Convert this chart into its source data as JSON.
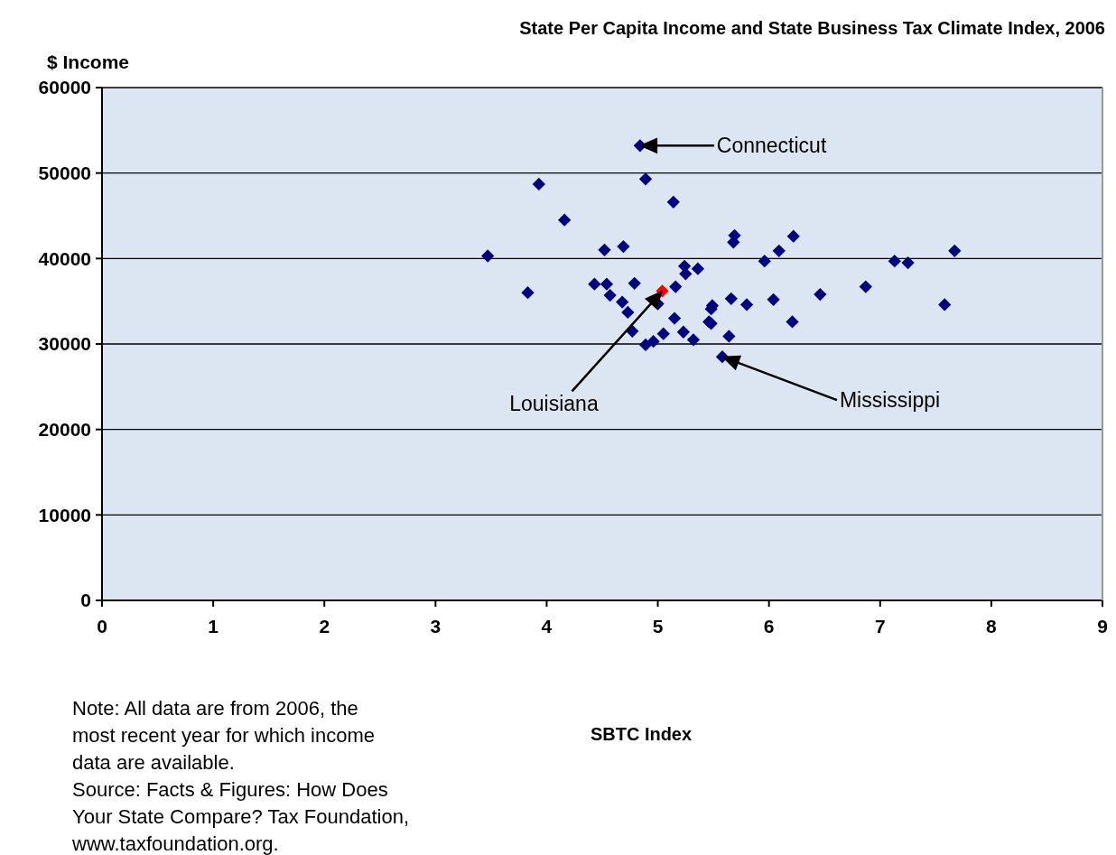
{
  "chart_data": {
    "type": "scatter",
    "title": "State Per Capita Income and State Business Tax Climate Index, 2006",
    "xlabel": "SBTC Index",
    "ylabel": "$ Income",
    "xlim": [
      0,
      9
    ],
    "xticks": [
      0,
      1,
      2,
      3,
      4,
      5,
      6,
      7,
      8,
      9
    ],
    "ylim": [
      0,
      60000
    ],
    "yticks": [
      0,
      10000,
      20000,
      30000,
      40000,
      50000,
      60000
    ],
    "grid": "y",
    "marker": "diamond",
    "series": [
      {
        "color": "#000080",
        "x": [
          4.84,
          4.89,
          3.93,
          5.14,
          4.16,
          5.69,
          5.68,
          4.52,
          4.69,
          3.47,
          5.96,
          5.24,
          5.36,
          5.25,
          4.43,
          4.54,
          4.79,
          5.16,
          3.83,
          4.57,
          4.68,
          5.0,
          5.66,
          5.8,
          5.49,
          5.48,
          6.04,
          4.73,
          5.15,
          5.46,
          5.48,
          4.77,
          5.05,
          5.23,
          5.32,
          5.64,
          4.89,
          4.96,
          5.58,
          6.09,
          6.22,
          7.13,
          7.25,
          7.67,
          6.87,
          6.46,
          6.21,
          7.58
        ],
        "values": [
          53200,
          49300,
          48700,
          46600,
          44500,
          42700,
          41900,
          41000,
          41400,
          40300,
          39700,
          39100,
          38800,
          38200,
          37000,
          37000,
          37100,
          36700,
          36000,
          35700,
          34900,
          34700,
          35300,
          34600,
          34500,
          34100,
          35200,
          33700,
          33000,
          32600,
          32400,
          31500,
          31200,
          31400,
          30500,
          30900,
          29900,
          30300,
          28500,
          40900,
          42600,
          39700,
          39500,
          40900,
          36700,
          35800,
          32600,
          34600
        ]
      },
      {
        "color": "#ff0000",
        "x": [
          5.04
        ],
        "values": [
          36200
        ]
      }
    ],
    "annotations": [
      {
        "text": "Connecticut",
        "x": 4.84,
        "y": 53200
      },
      {
        "text": "Louisiana",
        "x": 5.04,
        "y": 36200
      },
      {
        "text": "Mississippi",
        "x": 5.58,
        "y": 28500
      },
      "Note: All data are from 2006, the most recent year for which income data are available.",
      "Source: Facts & Figures: How Does Your State Compare? Tax Foundation, www.taxfoundation.org."
    ]
  }
}
